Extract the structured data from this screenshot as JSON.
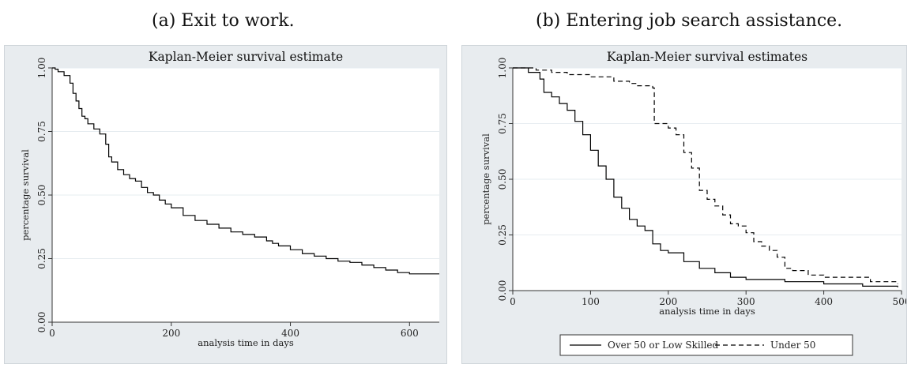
{
  "captions": {
    "left": "(a) Exit to work.",
    "right": "(b) Entering job search assistance."
  },
  "chart_data": [
    {
      "type": "line",
      "title": "Kaplan-Meier survival estimate",
      "xlabel": "analysis time in days",
      "ylabel": "percentage survival",
      "xlim": [
        0,
        650
      ],
      "ylim": [
        0,
        1
      ],
      "xticks": [
        0,
        200,
        400,
        600
      ],
      "yticks": [
        "0.00",
        "0.25",
        "0.50",
        "0.75",
        "1.00"
      ],
      "grid": true,
      "step": true,
      "series": [
        {
          "name": "",
          "color": "#000000",
          "dash": "",
          "x": [
            0,
            5,
            10,
            20,
            30,
            35,
            40,
            45,
            50,
            55,
            60,
            70,
            80,
            90,
            95,
            100,
            110,
            120,
            130,
            140,
            150,
            160,
            170,
            180,
            190,
            200,
            220,
            240,
            260,
            280,
            300,
            320,
            340,
            360,
            370,
            380,
            400,
            420,
            440,
            460,
            480,
            500,
            520,
            540,
            560,
            580,
            600,
            620,
            650
          ],
          "y": [
            1.0,
            0.995,
            0.985,
            0.97,
            0.94,
            0.9,
            0.87,
            0.84,
            0.81,
            0.8,
            0.78,
            0.76,
            0.74,
            0.7,
            0.65,
            0.63,
            0.6,
            0.58,
            0.565,
            0.555,
            0.53,
            0.51,
            0.5,
            0.48,
            0.465,
            0.45,
            0.42,
            0.4,
            0.385,
            0.37,
            0.355,
            0.345,
            0.335,
            0.32,
            0.31,
            0.3,
            0.285,
            0.27,
            0.26,
            0.25,
            0.24,
            0.235,
            0.225,
            0.215,
            0.205,
            0.195,
            0.19,
            0.19,
            0.19
          ]
        }
      ]
    },
    {
      "type": "line",
      "title": "Kaplan-Meier survival estimates",
      "xlabel": "analysis time in days",
      "ylabel": "percentage survival",
      "xlim": [
        0,
        500
      ],
      "ylim": [
        0,
        1
      ],
      "xticks": [
        0,
        100,
        200,
        300,
        400,
        500
      ],
      "yticks": [
        "0.00",
        "0.25",
        "0.50",
        "0.75",
        "1.00"
      ],
      "grid": true,
      "step": true,
      "legend": "bottom",
      "series": [
        {
          "name": "Over 50 or Low Skilled",
          "color": "#000000",
          "dash": "",
          "x": [
            0,
            20,
            35,
            40,
            50,
            60,
            70,
            80,
            90,
            100,
            110,
            120,
            130,
            140,
            150,
            160,
            170,
            180,
            190,
            200,
            220,
            240,
            260,
            280,
            300,
            350,
            400,
            450,
            495
          ],
          "y": [
            1.0,
            0.98,
            0.95,
            0.89,
            0.87,
            0.84,
            0.81,
            0.76,
            0.7,
            0.63,
            0.56,
            0.5,
            0.42,
            0.37,
            0.32,
            0.29,
            0.27,
            0.21,
            0.18,
            0.17,
            0.13,
            0.1,
            0.08,
            0.06,
            0.05,
            0.04,
            0.03,
            0.02,
            0.015
          ]
        },
        {
          "name": "Under 50",
          "color": "#000000",
          "dash": "6,4",
          "x": [
            0,
            30,
            50,
            70,
            100,
            130,
            150,
            160,
            180,
            182,
            200,
            210,
            220,
            230,
            240,
            250,
            260,
            270,
            280,
            290,
            300,
            310,
            320,
            330,
            340,
            350,
            360,
            380,
            400,
            420,
            450,
            460,
            495
          ],
          "y": [
            1.0,
            0.99,
            0.98,
            0.97,
            0.96,
            0.94,
            0.93,
            0.92,
            0.91,
            0.75,
            0.73,
            0.7,
            0.62,
            0.55,
            0.45,
            0.41,
            0.38,
            0.34,
            0.3,
            0.29,
            0.26,
            0.22,
            0.2,
            0.18,
            0.15,
            0.1,
            0.09,
            0.07,
            0.06,
            0.06,
            0.06,
            0.04,
            0.03
          ]
        }
      ]
    }
  ]
}
